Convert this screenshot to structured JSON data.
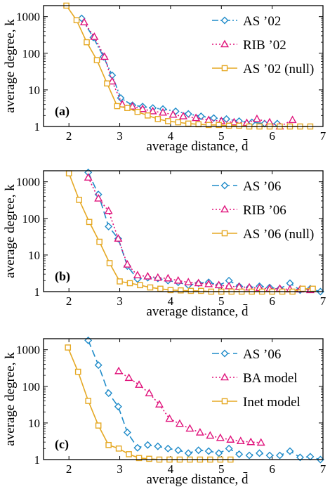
{
  "figure": {
    "xlabel": "average distance, d̄",
    "ylabel": "average degree, k"
  },
  "colors": {
    "blue": "#1f8bc9",
    "magenta": "#e0147c",
    "orange": "#e5a823"
  },
  "chart_data": [
    {
      "type": "line",
      "panel_label": "(a)",
      "xlabel": "average distance, d̄",
      "ylabel": "average degree, k",
      "xlim": [
        1.5,
        7
      ],
      "ylim": [
        1,
        2000
      ],
      "yscale": "log",
      "x_ticks": [
        "2",
        "3",
        "4",
        "5",
        "6",
        "7"
      ],
      "y_ticks": [
        "1",
        "10",
        "100",
        "1000"
      ],
      "legend_position": "top-right",
      "series": [
        {
          "name": "AS ’02",
          "color": "#1f8bc9",
          "marker": "diamond",
          "line": "dash-dot",
          "x": [
            2.25,
            2.48,
            2.68,
            2.85,
            3.02,
            3.25,
            3.45,
            3.65,
            3.85,
            4.1,
            4.35,
            4.6,
            4.85,
            5.1,
            5.35,
            5.6,
            5.85,
            6.1
          ],
          "y": [
            900,
            270,
            80,
            25,
            6,
            3.8,
            3.5,
            3.2,
            3.0,
            2.6,
            2.2,
            1.9,
            1.7,
            1.6,
            1.4,
            1.3,
            1.2,
            1.2
          ]
        },
        {
          "name": "RIB ’02",
          "color": "#e0147c",
          "marker": "triangle",
          "line": "dotted",
          "x": [
            2.3,
            2.5,
            2.7,
            2.85,
            3.05,
            3.25,
            3.45,
            3.65,
            3.85,
            4.05,
            4.25,
            4.5,
            4.75,
            5.0,
            5.25,
            5.5,
            5.7,
            5.95,
            6.15,
            6.4
          ],
          "y": [
            700,
            280,
            80,
            17,
            4.0,
            3.5,
            3.0,
            2.6,
            2.4,
            2.1,
            1.9,
            1.7,
            1.5,
            1.4,
            1.3,
            1.25,
            1.6,
            1.3,
            1.0,
            1.5
          ]
        },
        {
          "name": "AS ’02 (null)",
          "color": "#e5a823",
          "marker": "square",
          "line": "solid",
          "x": [
            1.95,
            2.15,
            2.35,
            2.55,
            2.75,
            2.95,
            3.15,
            3.35,
            3.55,
            3.75,
            3.95,
            4.15,
            4.35,
            4.55,
            4.75,
            4.95,
            5.15,
            5.35,
            5.55,
            5.75,
            5.95,
            6.15,
            6.35,
            6.55,
            6.75
          ],
          "y": [
            2000,
            800,
            200,
            65,
            15,
            3.6,
            3.2,
            2.5,
            2.0,
            1.6,
            1.4,
            1.3,
            1.2,
            1.15,
            1.1,
            1.1,
            1.05,
            1.05,
            1.0,
            1.0,
            1.0,
            1.0,
            1.0,
            1.0,
            1.0
          ]
        }
      ]
    },
    {
      "type": "line",
      "panel_label": "(b)",
      "xlabel": "average distance, d̄",
      "ylabel": "average degree, k",
      "xlim": [
        1.5,
        7
      ],
      "ylim": [
        1,
        2000
      ],
      "yscale": "log",
      "x_ticks": [
        "2",
        "3",
        "4",
        "5",
        "6",
        "7"
      ],
      "y_ticks": [
        "1",
        "10",
        "100",
        "1000"
      ],
      "legend_position": "top-right",
      "series": [
        {
          "name": "AS ’06",
          "color": "#1f8bc9",
          "marker": "diamond",
          "line": "dash",
          "x": [
            2.38,
            2.58,
            2.78,
            2.97,
            3.15,
            3.35,
            3.55,
            3.75,
            3.95,
            4.15,
            4.35,
            4.55,
            4.75,
            4.95,
            5.15,
            5.35,
            5.55,
            5.75,
            5.95,
            6.15,
            6.35,
            6.55,
            6.75,
            6.95
          ],
          "y": [
            1800,
            450,
            60,
            28,
            5.0,
            2.2,
            2.4,
            2.3,
            2.0,
            1.8,
            1.5,
            1.7,
            1.8,
            1.5,
            2.0,
            1.4,
            1.3,
            1.4,
            1.3,
            1.2,
            1.7,
            1.1,
            1.2,
            1.0
          ]
        },
        {
          "name": "RIB ’06",
          "color": "#e0147c",
          "marker": "triangle",
          "line": "dotted",
          "x": [
            2.38,
            2.58,
            2.78,
            2.97,
            3.15,
            3.35,
            3.55,
            3.75,
            3.95,
            4.15,
            4.35,
            4.55,
            4.75,
            4.95,
            5.15,
            5.35,
            5.55,
            5.75,
            5.95,
            6.15,
            6.35,
            6.55,
            6.75
          ],
          "y": [
            1300,
            350,
            160,
            28,
            5.5,
            2.8,
            2.6,
            2.4,
            2.3,
            2.0,
            1.8,
            1.7,
            1.6,
            1.5,
            1.4,
            1.35,
            1.3,
            1.25,
            1.2,
            1.2,
            1.15,
            1.15,
            1.1
          ]
        },
        {
          "name": "AS ’06 (null)",
          "color": "#e5a823",
          "marker": "square",
          "line": "solid",
          "x": [
            2.0,
            2.2,
            2.4,
            2.6,
            2.8,
            3.0,
            3.2,
            3.4,
            3.6,
            3.8,
            4.0,
            4.2,
            4.4,
            4.6,
            4.8,
            5.0,
            5.2,
            5.4,
            5.6,
            5.8,
            6.0,
            6.2,
            6.4,
            6.6,
            6.8
          ],
          "y": [
            1700,
            320,
            80,
            23,
            6.0,
            1.9,
            1.7,
            1.5,
            1.3,
            1.2,
            1.1,
            1.08,
            1.05,
            1.05,
            1.0,
            1.0,
            1.0,
            1.0,
            1.0,
            1.0,
            1.0,
            1.0,
            1.0,
            1.2,
            1.2
          ]
        }
      ]
    },
    {
      "type": "line",
      "panel_label": "(c)",
      "xlabel": "average distance, d̄",
      "ylabel": "average degree, k",
      "xlim": [
        1.5,
        7
      ],
      "ylim": [
        1,
        2000
      ],
      "yscale": "log",
      "x_ticks": [
        "2",
        "3",
        "4",
        "5",
        "6",
        "7"
      ],
      "y_ticks": [
        "1",
        "10",
        "100",
        "1000"
      ],
      "legend_position": "top-right",
      "series": [
        {
          "name": "AS ’06",
          "color": "#1f8bc9",
          "marker": "diamond",
          "line": "dash",
          "x": [
            2.38,
            2.58,
            2.78,
            2.97,
            3.15,
            3.35,
            3.55,
            3.75,
            3.95,
            4.15,
            4.35,
            4.55,
            4.75,
            4.95,
            5.15,
            5.35,
            5.55,
            5.75,
            5.95,
            6.15,
            6.35,
            6.55,
            6.75,
            6.95
          ],
          "y": [
            1800,
            380,
            65,
            28,
            5.5,
            2.1,
            2.5,
            2.3,
            2.0,
            1.8,
            1.5,
            1.8,
            1.7,
            1.5,
            2.0,
            1.4,
            1.3,
            1.5,
            1.3,
            1.3,
            1.7,
            1.15,
            1.2,
            1.0
          ]
        },
        {
          "name": "BA model",
          "color": "#e0147c",
          "marker": "triangle",
          "line": "dotted",
          "x": [
            2.98,
            3.18,
            3.38,
            3.58,
            3.78,
            3.98,
            4.18,
            4.38,
            4.58,
            4.78,
            4.98,
            5.18,
            5.38,
            5.58,
            5.78
          ],
          "y": [
            260,
            170,
            110,
            65,
            32,
            13,
            9.5,
            7.0,
            5.5,
            4.5,
            3.9,
            3.5,
            3.2,
            3.0,
            2.9
          ]
        },
        {
          "name": "Inet model",
          "color": "#e5a823",
          "marker": "square",
          "line": "solid",
          "x": [
            1.98,
            2.18,
            2.38,
            2.58,
            2.78,
            2.98,
            3.18,
            3.38,
            3.58,
            3.78,
            3.98,
            4.18,
            4.38,
            4.58,
            4.78,
            4.98,
            5.18
          ],
          "y": [
            1150,
            250,
            40,
            8.5,
            2.5,
            2.0,
            1.4,
            1.1,
            1.05,
            1.0,
            1.0,
            1.0,
            1.0,
            1.0,
            1.0,
            1.0,
            1.0
          ]
        }
      ]
    }
  ]
}
